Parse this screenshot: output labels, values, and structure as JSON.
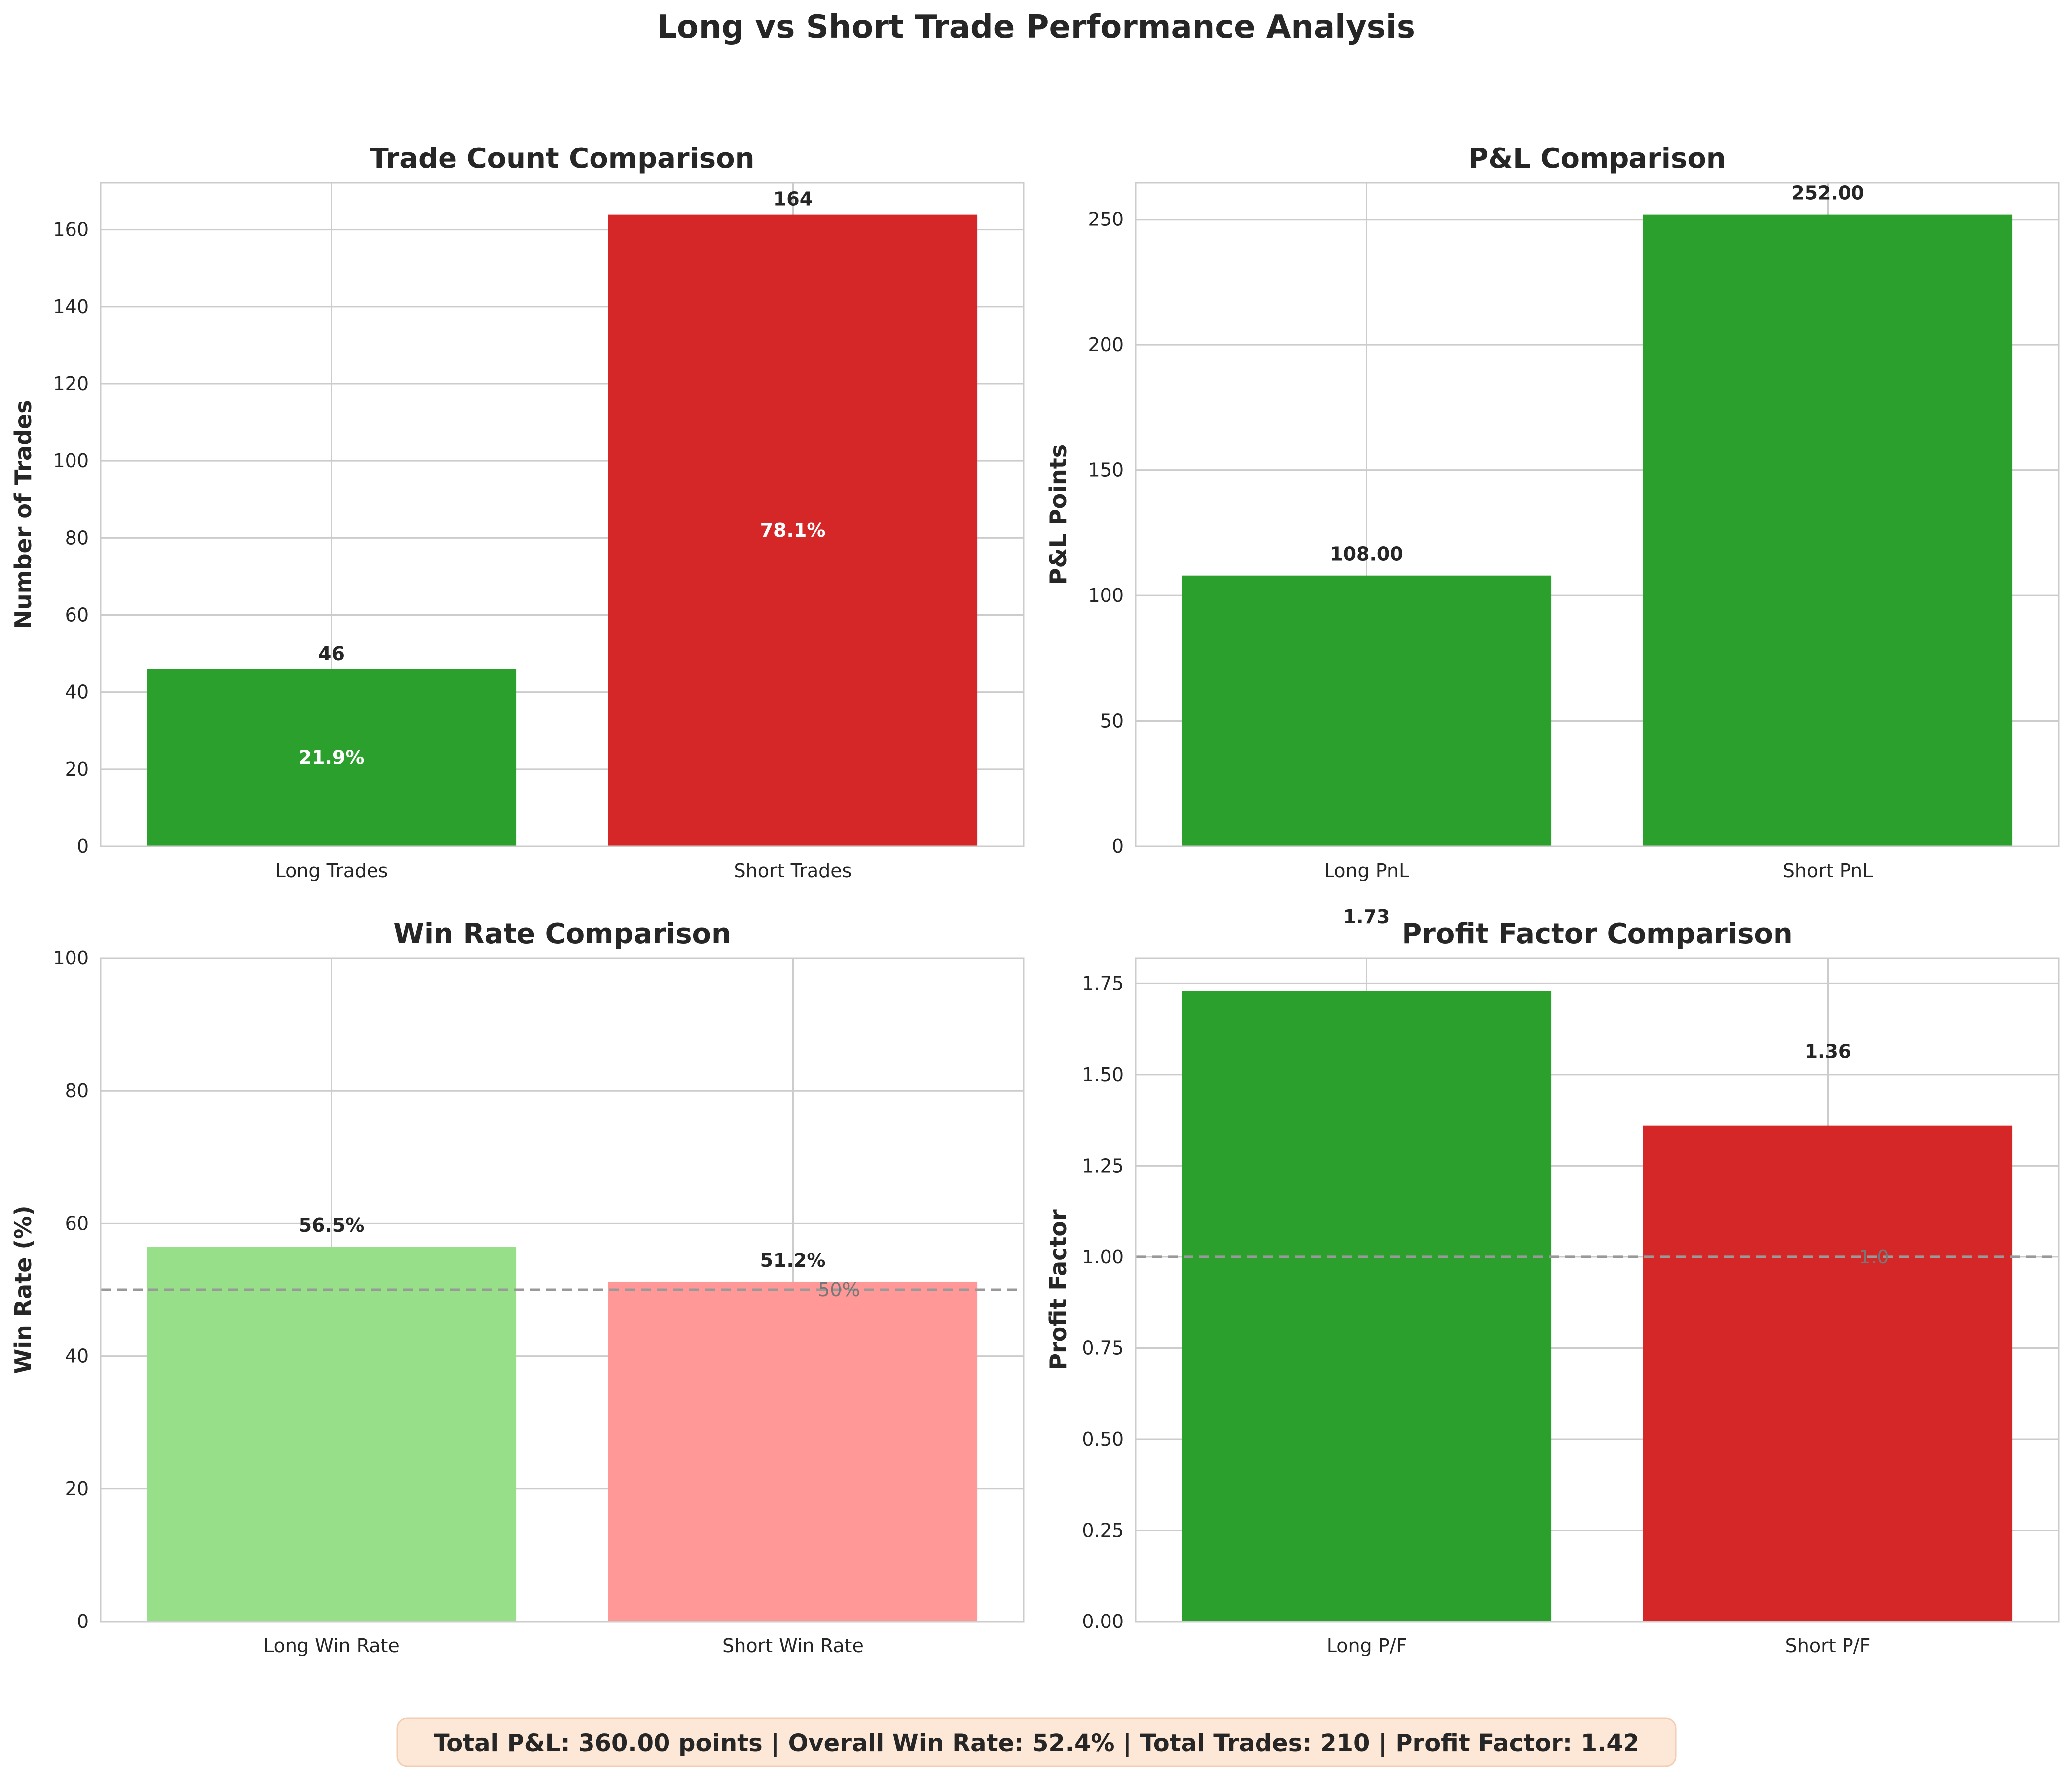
{
  "figure": {
    "title": "Long vs Short Trade Performance Analysis",
    "summary": "Total P&L: 360.00 points | Overall Win Rate: 52.4% | Total Trades: 210 | Profit Factor: 1.42"
  },
  "colors": {
    "green": "#2ca02c",
    "red": "#d62728",
    "light_green": "#98df8a",
    "light_red": "#ff9896",
    "summary_bg": "#fde8d8",
    "reference_line": "#999999"
  },
  "chart_data": [
    {
      "type": "bar",
      "title": "Trade Count Comparison",
      "ylabel": "Number of Trades",
      "categories": [
        "Long Trades",
        "Short Trades"
      ],
      "values": [
        46,
        164
      ],
      "value_labels": [
        "46",
        "164"
      ],
      "inner_labels": [
        "21.9%",
        "78.1%"
      ],
      "bar_colors": [
        "#2ca02c",
        "#d62728"
      ],
      "ylim": [
        0,
        172.2
      ],
      "yticks": [
        0,
        20,
        40,
        60,
        80,
        100,
        120,
        140,
        160
      ],
      "ytick_labels": [
        "0",
        "20",
        "40",
        "60",
        "80",
        "100",
        "120",
        "140",
        "160"
      ],
      "grid": true
    },
    {
      "type": "bar",
      "title": "P&L Comparison",
      "ylabel": "P&L Points",
      "categories": [
        "Long PnL",
        "Short PnL"
      ],
      "values": [
        108.0,
        252.0
      ],
      "value_labels": [
        "108.00",
        "252.00"
      ],
      "bar_colors": [
        "#2ca02c",
        "#2ca02c"
      ],
      "ylim": [
        0,
        264.6
      ],
      "yticks": [
        0,
        50,
        100,
        150,
        200,
        250
      ],
      "ytick_labels": [
        "0",
        "50",
        "100",
        "150",
        "200",
        "250"
      ],
      "grid": true
    },
    {
      "type": "bar",
      "title": "Win Rate Comparison",
      "ylabel": "Win Rate (%)",
      "categories": [
        "Long Win Rate",
        "Short Win Rate"
      ],
      "values": [
        56.5,
        51.2
      ],
      "value_labels": [
        "56.5%",
        "51.2%"
      ],
      "bar_colors": [
        "#98df8a",
        "#ff9896"
      ],
      "ylim": [
        0,
        100
      ],
      "yticks": [
        0,
        20,
        40,
        60,
        80,
        100
      ],
      "ytick_labels": [
        "0",
        "20",
        "40",
        "60",
        "80",
        "100"
      ],
      "reference": {
        "value": 50,
        "label": "50%"
      },
      "grid": true
    },
    {
      "type": "bar",
      "title": "Profit Factor Comparison",
      "ylabel": "Profit Factor",
      "categories": [
        "Long P/F",
        "Short P/F"
      ],
      "values": [
        1.73,
        1.36
      ],
      "value_labels": [
        "1.73",
        "1.36"
      ],
      "bar_colors": [
        "#2ca02c",
        "#d62728"
      ],
      "ylim": [
        0,
        1.82
      ],
      "yticks": [
        0,
        0.25,
        0.5,
        0.75,
        1.0,
        1.25,
        1.5,
        1.75
      ],
      "ytick_labels": [
        "0.00",
        "0.25",
        "0.50",
        "0.75",
        "1.00",
        "1.25",
        "1.50",
        "1.75"
      ],
      "reference": {
        "value": 1.0,
        "label": "1.0"
      },
      "grid": true
    }
  ]
}
